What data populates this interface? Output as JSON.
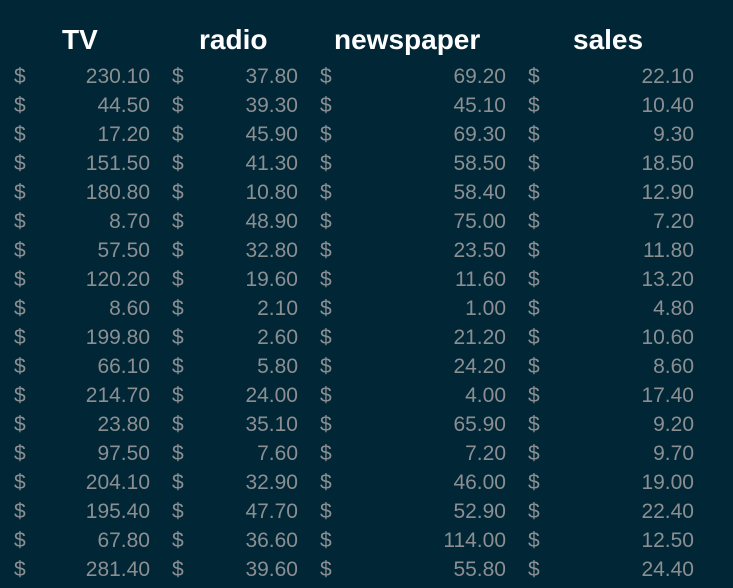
{
  "table": {
    "columns": [
      "TV",
      "radio",
      "newspaper",
      "sales"
    ],
    "currency_symbol": "$",
    "rows": [
      [
        "230.10",
        "37.80",
        "69.20",
        "22.10"
      ],
      [
        "44.50",
        "39.30",
        "45.10",
        "10.40"
      ],
      [
        "17.20",
        "45.90",
        "69.30",
        "9.30"
      ],
      [
        "151.50",
        "41.30",
        "58.50",
        "18.50"
      ],
      [
        "180.80",
        "10.80",
        "58.40",
        "12.90"
      ],
      [
        "8.70",
        "48.90",
        "75.00",
        "7.20"
      ],
      [
        "57.50",
        "32.80",
        "23.50",
        "11.80"
      ],
      [
        "120.20",
        "19.60",
        "11.60",
        "13.20"
      ],
      [
        "8.60",
        "2.10",
        "1.00",
        "4.80"
      ],
      [
        "199.80",
        "2.60",
        "21.20",
        "10.60"
      ],
      [
        "66.10",
        "5.80",
        "24.20",
        "8.60"
      ],
      [
        "214.70",
        "24.00",
        "4.00",
        "17.40"
      ],
      [
        "23.80",
        "35.10",
        "65.90",
        "9.20"
      ],
      [
        "97.50",
        "7.60",
        "7.20",
        "9.70"
      ],
      [
        "204.10",
        "32.90",
        "46.00",
        "19.00"
      ],
      [
        "195.40",
        "47.70",
        "52.90",
        "22.40"
      ],
      [
        "67.80",
        "36.60",
        "114.00",
        "12.50"
      ],
      [
        "281.40",
        "39.60",
        "55.80",
        "24.40"
      ]
    ]
  },
  "colors": {
    "background": "#012636",
    "header_text": "#ffffff",
    "cell_text": "#8b8f92"
  }
}
